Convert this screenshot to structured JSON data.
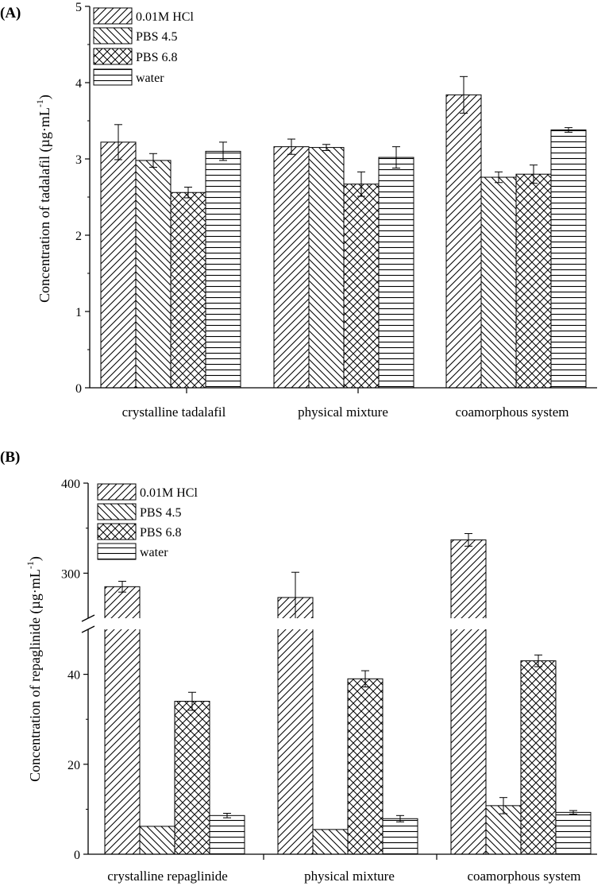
{
  "chart_data": [
    {
      "type": "bar",
      "panel_label": "(A)",
      "title": "",
      "ylabel": "Concentration of tadalafil (µg·mL",
      "ylabel_sup": "-1",
      "ylabel_end": ")",
      "xlabel": "",
      "ylim": [
        0,
        5
      ],
      "yticks": [
        "0",
        "1",
        "2",
        "3",
        "4",
        "5"
      ],
      "categories": [
        "crystalline tadalafil",
        "physical mixture",
        "coamorphous system"
      ],
      "legend_position": "top-left",
      "series": [
        {
          "name": "0.01M HCl",
          "pattern": "diag-right",
          "values": [
            3.22,
            3.16,
            3.84
          ],
          "errors": [
            0.23,
            0.1,
            0.24
          ]
        },
        {
          "name": "PBS 4.5",
          "pattern": "diag-left",
          "values": [
            2.98,
            3.15,
            2.76
          ],
          "errors": [
            0.09,
            0.04,
            0.07
          ]
        },
        {
          "name": "PBS 6.8",
          "pattern": "crosshatch",
          "values": [
            2.56,
            2.67,
            2.8
          ],
          "errors": [
            0.07,
            0.16,
            0.12
          ]
        },
        {
          "name": "water",
          "pattern": "horizontal",
          "values": [
            3.1,
            3.02,
            3.38
          ],
          "errors": [
            0.12,
            0.14,
            0.03
          ]
        }
      ]
    },
    {
      "type": "bar",
      "panel_label": "(B)",
      "title": "",
      "ylabel": "Concentration of repaglinide (µg·mL",
      "ylabel_sup": "-1",
      "ylabel_end": ")",
      "xlabel": "",
      "broken_axis": {
        "lower": [
          0,
          50
        ],
        "upper": [
          250,
          400
        ]
      },
      "yticks_lower": [
        "0",
        "20",
        "40"
      ],
      "yticks_upper": [
        "300",
        "400"
      ],
      "categories": [
        "crystalline repaglinide",
        "physical mixture",
        "coamorphous system"
      ],
      "legend_position": "top-left",
      "series": [
        {
          "name": "0.01M HCl",
          "pattern": "diag-right",
          "values": [
            285,
            273,
            337
          ],
          "errors": [
            6,
            28,
            7
          ]
        },
        {
          "name": "PBS 4.5",
          "pattern": "diag-left",
          "values": [
            6.2,
            5.5,
            10.8
          ],
          "errors": [
            0,
            0,
            1.8
          ]
        },
        {
          "name": "PBS 6.8",
          "pattern": "crosshatch",
          "values": [
            34.0,
            39.0,
            43.0
          ],
          "errors": [
            2.0,
            1.8,
            1.3
          ]
        },
        {
          "name": "water",
          "pattern": "horizontal",
          "values": [
            8.6,
            7.9,
            9.3
          ],
          "errors": [
            0.5,
            0.7,
            0.4
          ]
        }
      ]
    }
  ]
}
